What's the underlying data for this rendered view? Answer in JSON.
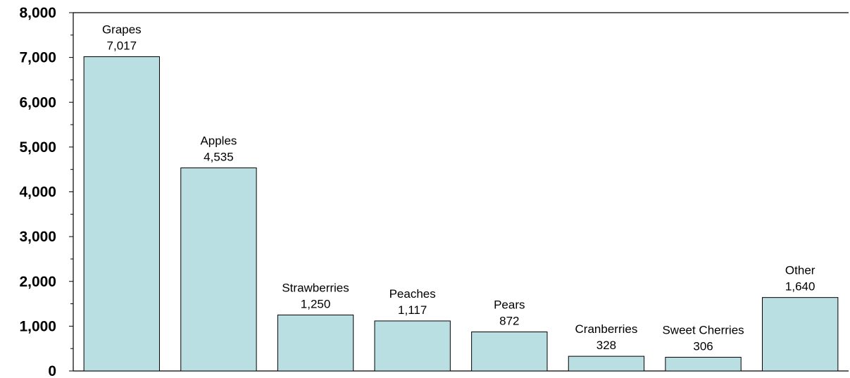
{
  "chart_data": {
    "type": "bar",
    "title": "",
    "xlabel": "",
    "ylabel": "",
    "categories": [
      "Grapes",
      "Apples",
      "Strawberries",
      "Peaches",
      "Pears",
      "Cranberries",
      "Sweet Cherries",
      "Other"
    ],
    "values": [
      7017,
      4535,
      1250,
      1117,
      872,
      328,
      306,
      1640
    ],
    "value_labels": [
      "7,017",
      "4,535",
      "1,250",
      "1,117",
      "872",
      "328",
      "306",
      "1,640"
    ],
    "ylim": [
      0,
      8000
    ],
    "yticks": [
      0,
      1000,
      2000,
      3000,
      4000,
      5000,
      6000,
      7000,
      8000
    ],
    "ytick_labels": [
      "0",
      "1,000",
      "2,000",
      "3,000",
      "4,000",
      "5,000",
      "6,000",
      "7,000",
      "8,000"
    ],
    "grid": false,
    "bar_color": "#b9dfe3",
    "bar_edge_color": "#000000"
  }
}
